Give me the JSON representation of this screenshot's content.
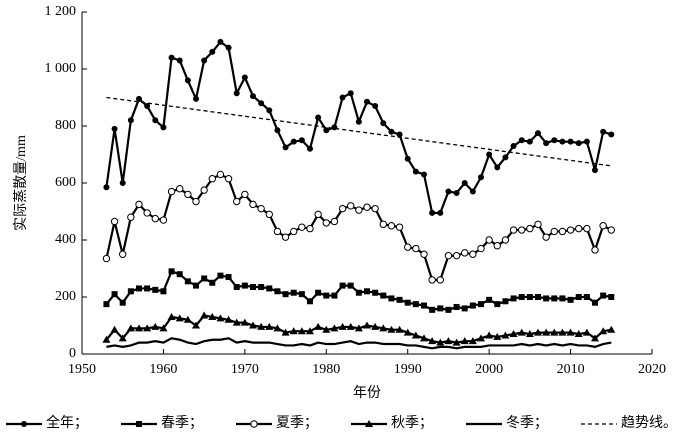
{
  "chart_data": {
    "type": "line",
    "y_label": "实际蒸散量/mm",
    "x_label": "年份",
    "xlim": [
      1950,
      2020
    ],
    "xticks": [
      1950,
      1960,
      1970,
      1980,
      1990,
      2000,
      2010,
      2020
    ],
    "ylim": [
      0,
      1200
    ],
    "yticks": [
      0,
      200,
      400,
      600,
      800,
      {
        "value": 1000,
        "label": "1 000"
      },
      {
        "value": 1200,
        "label": "1 200"
      }
    ],
    "grid": false,
    "legend": "bottom",
    "x": [
      1953,
      1954,
      1955,
      1956,
      1957,
      1958,
      1959,
      1960,
      1961,
      1962,
      1963,
      1964,
      1965,
      1966,
      1967,
      1968,
      1969,
      1970,
      1971,
      1972,
      1973,
      1974,
      1975,
      1976,
      1977,
      1978,
      1979,
      1980,
      1981,
      1982,
      1983,
      1984,
      1985,
      1986,
      1987,
      1988,
      1989,
      1990,
      1991,
      1992,
      1993,
      1994,
      1995,
      1996,
      1997,
      1998,
      1999,
      2000,
      2001,
      2002,
      2003,
      2004,
      2005,
      2006,
      2007,
      2008,
      2009,
      2010,
      2011,
      2012,
      2013,
      2014,
      2015
    ],
    "series": [
      {
        "name": "全年；",
        "color": "#000000",
        "marker": "circle",
        "values": [
          585,
          790,
          600,
          820,
          895,
          870,
          820,
          795,
          1040,
          1030,
          960,
          895,
          1030,
          1060,
          1095,
          1075,
          915,
          970,
          905,
          880,
          855,
          785,
          725,
          745,
          750,
          720,
          830,
          785,
          795,
          900,
          915,
          815,
          885,
          870,
          810,
          780,
          770,
          685,
          640,
          630,
          495,
          495,
          570,
          565,
          600,
          570,
          620,
          700,
          655,
          690,
          730,
          750,
          745,
          775,
          740,
          750,
          745,
          745,
          740,
          745,
          645,
          780,
          770
        ]
      },
      {
        "name": "春季；",
        "color": "#000000",
        "marker": "square",
        "values": [
          175,
          210,
          180,
          220,
          230,
          230,
          225,
          220,
          290,
          280,
          255,
          240,
          265,
          250,
          275,
          270,
          235,
          240,
          235,
          235,
          230,
          220,
          210,
          215,
          210,
          185,
          215,
          205,
          205,
          240,
          240,
          215,
          220,
          215,
          205,
          195,
          190,
          180,
          175,
          170,
          155,
          160,
          155,
          165,
          160,
          170,
          175,
          190,
          175,
          185,
          195,
          200,
          200,
          200,
          195,
          195,
          195,
          190,
          200,
          200,
          180,
          205,
          200
        ]
      },
      {
        "name": "夏季；",
        "color": "#000000",
        "marker": "open-circle",
        "values": [
          335,
          465,
          350,
          480,
          525,
          495,
          475,
          470,
          570,
          580,
          560,
          535,
          575,
          615,
          630,
          615,
          535,
          560,
          525,
          510,
          490,
          430,
          410,
          430,
          445,
          440,
          490,
          460,
          465,
          510,
          520,
          505,
          515,
          510,
          455,
          450,
          445,
          375,
          370,
          350,
          260,
          260,
          345,
          345,
          355,
          350,
          370,
          400,
          380,
          400,
          435,
          435,
          440,
          455,
          410,
          430,
          430,
          435,
          440,
          440,
          365,
          450,
          435
        ]
      },
      {
        "name": "秋季；",
        "color": "#000000",
        "marker": "triangle",
        "values": [
          50,
          85,
          55,
          90,
          90,
          90,
          95,
          90,
          130,
          125,
          120,
          100,
          135,
          130,
          125,
          120,
          110,
          110,
          100,
          95,
          95,
          90,
          75,
          80,
          80,
          80,
          95,
          85,
          90,
          95,
          95,
          90,
          100,
          95,
          90,
          85,
          85,
          75,
          65,
          55,
          45,
          40,
          45,
          40,
          45,
          45,
          55,
          65,
          60,
          65,
          70,
          75,
          70,
          75,
          75,
          75,
          75,
          75,
          70,
          75,
          55,
          80,
          85
        ]
      },
      {
        "name": "冬季；",
        "color": "#000000",
        "marker": "none",
        "values": [
          25,
          30,
          25,
          30,
          40,
          40,
          45,
          40,
          55,
          50,
          40,
          35,
          45,
          50,
          50,
          55,
          40,
          45,
          40,
          40,
          40,
          35,
          30,
          30,
          35,
          30,
          40,
          35,
          35,
          40,
          45,
          35,
          40,
          40,
          35,
          35,
          35,
          30,
          30,
          25,
          20,
          25,
          25,
          20,
          25,
          25,
          25,
          30,
          30,
          30,
          30,
          35,
          30,
          35,
          30,
          35,
          30,
          35,
          30,
          30,
          25,
          35,
          40
        ]
      },
      {
        "name": "趋势线。",
        "color": "#000000",
        "marker": "none",
        "dashed": true,
        "x": [
          1953,
          2015
        ],
        "values": [
          900,
          660
        ]
      }
    ]
  }
}
